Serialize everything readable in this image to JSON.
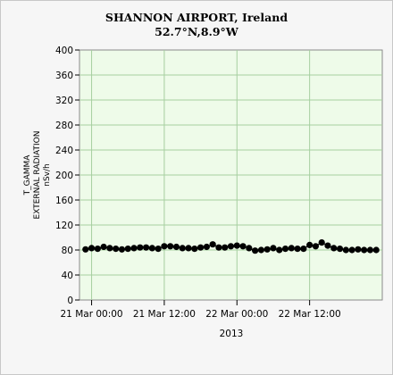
{
  "chart_data": {
    "type": "line",
    "title": "SHANNON AIRPORT, Ireland",
    "subtitle": "52.7°N,8.9°W",
    "ylabel_lines": [
      "T_GAMMA",
      "EXTERNAL RADIATION",
      "nSv/h"
    ],
    "xlabel": "2013",
    "ylim": [
      0,
      400
    ],
    "yticks": [
      0,
      40,
      80,
      120,
      160,
      200,
      240,
      280,
      320,
      360,
      400
    ],
    "xlim_hours": [
      -2,
      48
    ],
    "xticks": [
      {
        "hour": 0,
        "label": "21 Mar 00:00"
      },
      {
        "hour": 12,
        "label": "21 Mar 12:00"
      },
      {
        "hour": 24,
        "label": "22 Mar 00:00"
      },
      {
        "hour": 36,
        "label": "22 Mar 12:00"
      }
    ],
    "grid": true,
    "legend": "none",
    "colors": {
      "plot_bg": "#eefbe9",
      "grid": "#a6cfa0",
      "marker": "#000000",
      "line": "#000000"
    },
    "series": [
      {
        "x_hours": [
          -1,
          0,
          1,
          2,
          3,
          4,
          5,
          6,
          7,
          8,
          9,
          10,
          11,
          12,
          13,
          14,
          15,
          16,
          17,
          18,
          19,
          20,
          21,
          22,
          23,
          24,
          25,
          26,
          27,
          28,
          29,
          30,
          31,
          32,
          33,
          34,
          35,
          36,
          37,
          38,
          39,
          40,
          41,
          42,
          43,
          44,
          45,
          46,
          47
        ],
        "values": [
          81,
          83,
          82,
          85,
          83,
          82,
          81,
          82,
          83,
          84,
          84,
          83,
          82,
          86,
          86,
          85,
          83,
          83,
          82,
          84,
          85,
          89,
          84,
          84,
          86,
          87,
          86,
          83,
          79,
          80,
          81,
          83,
          80,
          82,
          83,
          82,
          82,
          88,
          86,
          92,
          87,
          83,
          82,
          80,
          80,
          81,
          80,
          80,
          80
        ]
      }
    ]
  }
}
